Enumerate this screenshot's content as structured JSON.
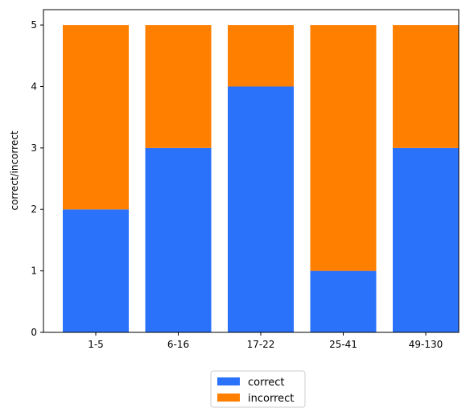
{
  "chart_data": {
    "type": "bar",
    "stacked": true,
    "categories": [
      "1-5",
      "6-16",
      "17-22",
      "25-41",
      "49-130"
    ],
    "series": [
      {
        "name": "correct",
        "values": [
          2,
          3,
          4,
          1,
          3
        ],
        "color": "#2a72fa"
      },
      {
        "name": "incorrect",
        "values": [
          3,
          2,
          1,
          4,
          2
        ],
        "color": "#ff7f00"
      }
    ],
    "title": "",
    "xlabel": "",
    "ylabel": "correct/incorrect",
    "ylim": [
      0,
      5.25
    ],
    "yticks": [
      0,
      1,
      2,
      3,
      4,
      5
    ],
    "grid": false,
    "legend_position": "bottom-center"
  }
}
